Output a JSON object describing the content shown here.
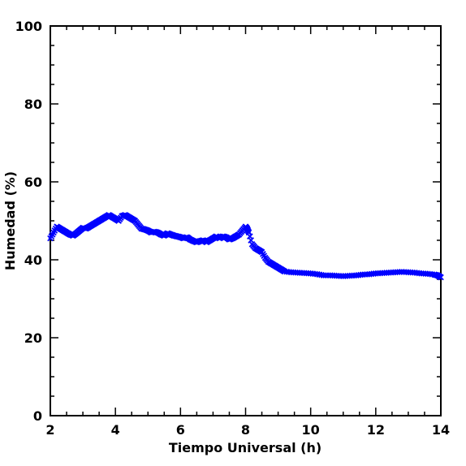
{
  "chart_data": {
    "type": "scatter",
    "title": "",
    "xlabel": "Tiempo Universal (h)",
    "ylabel": "Humedad (%)",
    "xlim": [
      2,
      14
    ],
    "ylim": [
      0,
      100
    ],
    "x_ticks": [
      "2",
      "4",
      "6",
      "8",
      "10",
      "12",
      "14"
    ],
    "y_ticks": [
      "0",
      "20",
      "40",
      "60",
      "80",
      "100"
    ],
    "grid": false,
    "marker": "x",
    "marker_color": "#0000ff",
    "series": [
      {
        "x": [
          2.0,
          2.1,
          2.2,
          2.3,
          2.4,
          2.5,
          2.6,
          2.7,
          2.8,
          2.9,
          3.0,
          3.1,
          3.2,
          3.3,
          3.4,
          3.5,
          3.6,
          3.7,
          3.8,
          3.9,
          4.0,
          4.1,
          4.2,
          4.3,
          4.4,
          4.5,
          4.6,
          4.7,
          4.8,
          4.9,
          5.0,
          5.1,
          5.2,
          5.3,
          5.4,
          5.5,
          5.6,
          5.7,
          5.8,
          5.9,
          6.0,
          6.1,
          6.2,
          6.3,
          6.4,
          6.5,
          6.6,
          6.7,
          6.8,
          6.9,
          7.0,
          7.1,
          7.2,
          7.3,
          7.4,
          7.5,
          7.6,
          7.7,
          7.8,
          7.9,
          8.0,
          8.05,
          8.1,
          8.2,
          8.3,
          8.4,
          8.5,
          8.6,
          8.7,
          8.8,
          8.9,
          9.0,
          9.1,
          9.2,
          9.4,
          9.6,
          9.8,
          10.0,
          10.2,
          10.4,
          10.6,
          10.8,
          11.0,
          11.2,
          11.4,
          11.6,
          11.8,
          12.0,
          12.2,
          12.4,
          12.6,
          12.8,
          13.0,
          13.2,
          13.4,
          13.6,
          13.8,
          13.9,
          14.0
        ],
        "y": [
          45.5,
          47.0,
          48.5,
          48.0,
          47.5,
          47.0,
          46.5,
          46.2,
          46.8,
          47.5,
          48.2,
          48.0,
          48.5,
          49.0,
          49.5,
          50.0,
          50.5,
          51.0,
          51.5,
          51.0,
          50.5,
          50.0,
          51.2,
          51.5,
          51.0,
          50.5,
          50.0,
          49.0,
          48.0,
          47.8,
          47.5,
          47.0,
          47.2,
          47.0,
          46.5,
          46.2,
          46.8,
          46.5,
          46.2,
          46.0,
          45.8,
          45.5,
          45.8,
          45.2,
          44.8,
          44.5,
          44.8,
          45.0,
          44.5,
          45.0,
          45.5,
          46.0,
          45.5,
          46.0,
          45.8,
          45.2,
          45.5,
          46.0,
          46.5,
          47.5,
          48.5,
          48.0,
          47.0,
          44.0,
          43.0,
          42.5,
          42.0,
          40.5,
          39.5,
          39.0,
          38.5,
          38.0,
          37.5,
          37.0,
          36.8,
          36.7,
          36.6,
          36.5,
          36.3,
          36.0,
          36.0,
          35.9,
          35.8,
          35.9,
          36.0,
          36.2,
          36.3,
          36.5,
          36.6,
          36.7,
          36.8,
          36.9,
          36.8,
          36.7,
          36.5,
          36.4,
          36.2,
          36.0,
          35.5
        ]
      }
    ]
  }
}
